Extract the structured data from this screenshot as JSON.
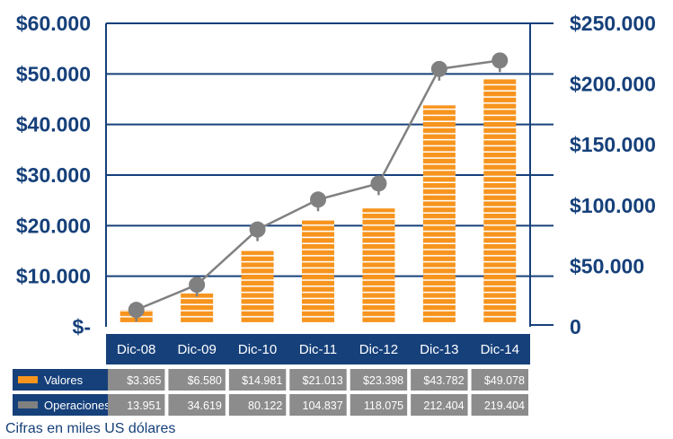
{
  "chart_data": {
    "type": "bar",
    "categories": [
      "Dic-08",
      "Dic-09",
      "Dic-10",
      "Dic-11",
      "Dic-12",
      "Dic-13",
      "Dic-14"
    ],
    "series": [
      {
        "name": "Valores",
        "kind": "bar",
        "axis": "left",
        "color": "#f7941d",
        "values": [
          3365,
          6580,
          14981,
          21013,
          23398,
          43782,
          49078
        ],
        "labels": [
          "$3.365",
          "$6.580",
          "$14.981",
          "$21.013",
          "$23.398",
          "$43.782",
          "$49.078"
        ]
      },
      {
        "name": "Operaciones",
        "kind": "line",
        "axis": "right",
        "color": "#808080",
        "values": [
          13951,
          34619,
          80122,
          104837,
          118075,
          212404,
          219404
        ],
        "labels": [
          "13.951",
          "34.619",
          "80.122",
          "104.837",
          "118.075",
          "212.404",
          "219.404"
        ]
      }
    ],
    "left_axis": {
      "ylim": [
        0,
        60000
      ],
      "ticks": [
        0,
        10000,
        20000,
        30000,
        40000,
        50000,
        60000
      ],
      "tick_labels": [
        "$-",
        "$10.000",
        "$20.000",
        "$30.000",
        "$40.000",
        "$50.000",
        "$60.000"
      ]
    },
    "right_axis": {
      "ylim": [
        0,
        250000
      ],
      "ticks": [
        0,
        50000,
        100000,
        150000,
        200000,
        250000
      ],
      "tick_labels": [
        "0",
        "$50.000",
        "$100.000",
        "$150.000",
        "$200.000",
        "$250.000"
      ]
    },
    "grid": true,
    "legend": "table-below"
  },
  "footnote": "Cifras en miles US dólares",
  "colors": {
    "axis_blue": "#16407a",
    "bar_orange": "#f7941d",
    "line_gray": "#808080",
    "table_gray": "#8c8c8c"
  }
}
